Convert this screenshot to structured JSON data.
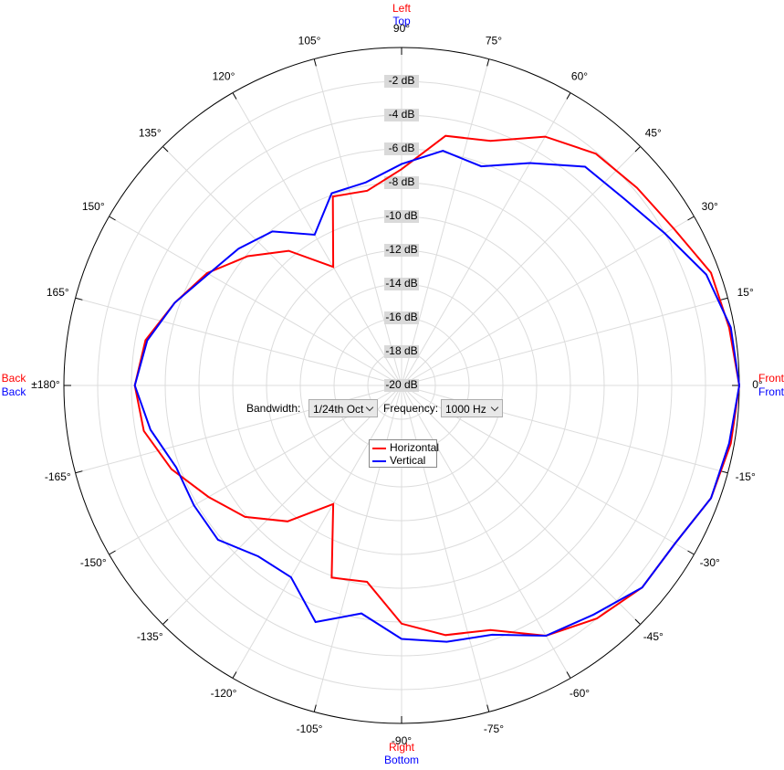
{
  "chart_data": {
    "type": "polar",
    "rlim": [
      -20,
      0
    ],
    "rticks": [
      {
        "value": -2,
        "label": "-2 dB"
      },
      {
        "value": -4,
        "label": "-4 dB"
      },
      {
        "value": -6,
        "label": "-6 dB"
      },
      {
        "value": -8,
        "label": "-8 dB"
      },
      {
        "value": -10,
        "label": "-10 dB"
      },
      {
        "value": -12,
        "label": "-12 dB"
      },
      {
        "value": -14,
        "label": "-14 dB"
      },
      {
        "value": -16,
        "label": "-16 dB"
      },
      {
        "value": -18,
        "label": "-18 dB"
      },
      {
        "value": -20,
        "label": "-20 dB"
      }
    ],
    "thetaticks": [
      {
        "value": 0,
        "label": "0°"
      },
      {
        "value": 15,
        "label": "15°"
      },
      {
        "value": 30,
        "label": "30°"
      },
      {
        "value": 45,
        "label": "45°"
      },
      {
        "value": 60,
        "label": "60°"
      },
      {
        "value": 75,
        "label": "75°"
      },
      {
        "value": 90,
        "label": "90°"
      },
      {
        "value": 105,
        "label": "105°"
      },
      {
        "value": 120,
        "label": "120°"
      },
      {
        "value": 135,
        "label": "135°"
      },
      {
        "value": 150,
        "label": "150°"
      },
      {
        "value": 165,
        "label": "165°"
      },
      {
        "value": 180,
        "label": "±180°"
      },
      {
        "value": -165,
        "label": "-165°"
      },
      {
        "value": -150,
        "label": "-150°"
      },
      {
        "value": -135,
        "label": "-135°"
      },
      {
        "value": -120,
        "label": "-120°"
      },
      {
        "value": -105,
        "label": "-105°"
      },
      {
        "value": -90,
        "label": "-90°"
      },
      {
        "value": -75,
        "label": "-75°"
      },
      {
        "value": -60,
        "label": "-60°"
      },
      {
        "value": -45,
        "label": "-45°"
      },
      {
        "value": -30,
        "label": "-30°"
      },
      {
        "value": -15,
        "label": "-15°"
      }
    ],
    "grid": true,
    "direction_labels": {
      "horizontal": [
        "Front",
        "Left",
        "Back",
        "Right"
      ],
      "vertical": [
        "Front",
        "Top",
        "Back",
        "Bottom"
      ]
    },
    "x": [
      -170,
      -160,
      -150,
      -140,
      -130,
      -120,
      -110,
      -100,
      -90,
      -80,
      -70,
      -60,
      -50,
      -40,
      -30,
      -20,
      -10,
      0,
      10,
      20,
      30,
      40,
      50,
      60,
      70,
      80,
      90,
      100,
      110,
      120,
      130,
      140,
      150,
      160,
      170,
      180
    ],
    "series": [
      {
        "name": "Horizontal",
        "color": "#ff0000",
        "values": [
          -4.5,
          -5.5,
          -6.8,
          -7.9,
          -9.5,
          -11.9,
          -7.9,
          -8.2,
          -5.9,
          -5.0,
          -4.6,
          -2.9,
          -2.0,
          -1.4,
          -1.3,
          -0.5,
          -0.2,
          0,
          -0.3,
          -0.5,
          -1.4,
          -1.8,
          -2.1,
          -3.0,
          -4.6,
          -5.0,
          -7.2,
          -8.3,
          -8.1,
          -11.9,
          -9.6,
          -8.1,
          -6.7,
          -5.7,
          -4.6,
          -4.2
        ]
      },
      {
        "name": "Vertical",
        "color": "#0000ff",
        "values": [
          -4.9,
          -5.8,
          -5.8,
          -5.8,
          -6.8,
          -6.9,
          -5.1,
          -6.3,
          -5.0,
          -4.6,
          -4.3,
          -2.9,
          -2.3,
          -1.4,
          -1.3,
          -0.5,
          -0.3,
          0,
          -0.2,
          -0.8,
          -2.0,
          -2.8,
          -3.1,
          -4.8,
          -6.2,
          -5.9,
          -6.9,
          -7.8,
          -7.9,
          -9.7,
          -8.1,
          -7.4,
          -6.8,
          -5.7,
          -4.7,
          -4.2
        ]
      }
    ],
    "controls": {
      "bandwidth_label": "Bandwidth:",
      "bandwidth": "1/24th Oct",
      "frequency_label": "Frequency:",
      "frequency": "1000 Hz"
    }
  }
}
